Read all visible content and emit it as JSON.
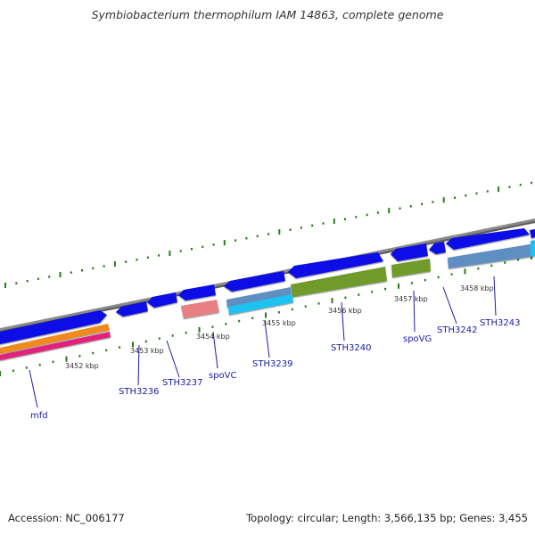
{
  "title": "Symbiobacterium thermophilum IAM 14863, complete genome",
  "footer": {
    "accession": "Accession: NC_006177",
    "summary": "Topology: circular; Length: 3,566,135 bp; Genes: 3,455"
  },
  "colors": {
    "forward_gene": "#0a0ae6",
    "backbone": "#8a8a8a",
    "gc_skew_ticks": "#2a7a1a",
    "label_text": "#1a1aa8",
    "spoVC": "#e87f82",
    "STH3239_a": "#5e8fc2",
    "STH3239_b": "#1ec3f0",
    "STH3240": "#6f9a2c",
    "spoVG": "#6f9a2c",
    "STH3243": "#5e8fc2",
    "mfd_a": "#f08a1a",
    "mfd_b": "#e0207a"
  },
  "ticks": [
    {
      "label": "3452 kbp"
    },
    {
      "label": "3453 kbp"
    },
    {
      "label": "3454 kbp"
    },
    {
      "label": "3455 kbp"
    },
    {
      "label": "3456 kbp"
    },
    {
      "label": "3457 kbp"
    },
    {
      "label": "3458 kbp"
    }
  ],
  "genes": [
    {
      "label": "mfd"
    },
    {
      "label": "STH3236"
    },
    {
      "label": "STH3237"
    },
    {
      "label": "spoVC"
    },
    {
      "label": "STH3239"
    },
    {
      "label": "STH3240"
    },
    {
      "label": "spoVG"
    },
    {
      "label": "STH3242"
    },
    {
      "label": "STH3243"
    }
  ]
}
